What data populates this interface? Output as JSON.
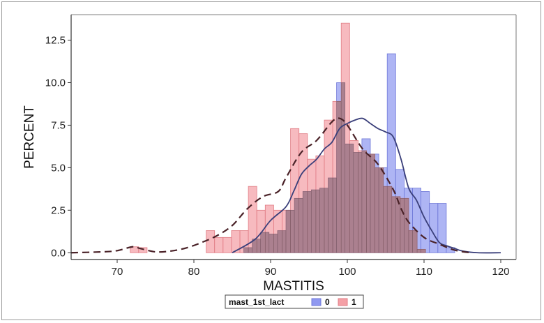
{
  "chart_data": {
    "type": "histogram",
    "xlabel": "MASTITIS",
    "ylabel": "PERCENT",
    "xlim": [
      64,
      122
    ],
    "ylim": [
      -0.4,
      14.0
    ],
    "x_ticks": [
      70,
      80,
      90,
      100,
      110,
      120
    ],
    "y_ticks": [
      0.0,
      2.5,
      5.0,
      7.5,
      10.0,
      12.5
    ],
    "x_tick_labels": [
      "70",
      "80",
      "90",
      "100",
      "110",
      "120"
    ],
    "y_tick_labels": [
      "0.0",
      "2.5",
      "5.0",
      "7.5",
      "10.0",
      "12.5"
    ],
    "bin_width": 1.1,
    "legend": {
      "title": "mast_1st_lact",
      "position": "bottom-center"
    },
    "colors": {
      "series_0": "#8f98f0",
      "series_1": "#f4a0a6",
      "overlap": "#9a7480",
      "curve_0": "#3a3f7a",
      "curve_1": "#4a2228"
    },
    "series": [
      {
        "name": "0",
        "bins": [
          {
            "x0": 86.5,
            "value": 0.3
          },
          {
            "x0": 87.6,
            "value": 0.8
          },
          {
            "x0": 88.7,
            "value": 1.2
          },
          {
            "x0": 89.8,
            "value": 1.1
          },
          {
            "x0": 90.9,
            "value": 1.3
          },
          {
            "x0": 92.0,
            "value": 2.5
          },
          {
            "x0": 93.1,
            "value": 3.2
          },
          {
            "x0": 94.2,
            "value": 3.6
          },
          {
            "x0": 95.3,
            "value": 3.7
          },
          {
            "x0": 96.4,
            "value": 3.8
          },
          {
            "x0": 97.5,
            "value": 4.4
          },
          {
            "x0": 98.6,
            "value": 10.0
          },
          {
            "x0": 99.7,
            "value": 6.4
          },
          {
            "x0": 100.8,
            "value": 5.9
          },
          {
            "x0": 101.9,
            "value": 6.7
          },
          {
            "x0": 103.0,
            "value": 5.8
          },
          {
            "x0": 104.1,
            "value": 5.0
          },
          {
            "x0": 105.2,
            "value": 11.7
          },
          {
            "x0": 106.3,
            "value": 4.9
          },
          {
            "x0": 107.4,
            "value": 3.8
          },
          {
            "x0": 108.5,
            "value": 3.8
          },
          {
            "x0": 109.6,
            "value": 3.6
          },
          {
            "x0": 110.7,
            "value": 2.9
          },
          {
            "x0": 111.8,
            "value": 2.9
          },
          {
            "x0": 112.9,
            "value": 0.3
          }
        ],
        "density": {
          "x": [
            85,
            88,
            90,
            92,
            93,
            94,
            95,
            96,
            97,
            98,
            99,
            100,
            101,
            102,
            103,
            104,
            105,
            106,
            107,
            108,
            109,
            110,
            111,
            112,
            113,
            114,
            115,
            117,
            120
          ],
          "y": [
            0.0,
            0.8,
            1.9,
            2.7,
            3.6,
            4.6,
            5.1,
            5.5,
            6.1,
            6.5,
            7.3,
            7.6,
            7.8,
            7.9,
            7.6,
            7.3,
            7.1,
            6.8,
            5.5,
            3.8,
            3.1,
            2.1,
            1.3,
            0.6,
            0.4,
            0.25,
            0.1,
            0.0,
            0.0
          ]
        }
      },
      {
        "name": "1",
        "bins": [
          {
            "x0": 71.7,
            "value": 0.35
          },
          {
            "x0": 72.8,
            "value": 0.3
          },
          {
            "x0": 81.6,
            "value": 1.3
          },
          {
            "x0": 82.7,
            "value": 0.9
          },
          {
            "x0": 83.8,
            "value": 0.9
          },
          {
            "x0": 84.9,
            "value": 1.3
          },
          {
            "x0": 86.0,
            "value": 1.3
          },
          {
            "x0": 87.1,
            "value": 3.9
          },
          {
            "x0": 88.2,
            "value": 2.5
          },
          {
            "x0": 89.3,
            "value": 2.8
          },
          {
            "x0": 90.4,
            "value": 2.5
          },
          {
            "x0": 91.5,
            "value": 2.5
          },
          {
            "x0": 92.6,
            "value": 7.3
          },
          {
            "x0": 93.7,
            "value": 7.0
          },
          {
            "x0": 94.8,
            "value": 5.5
          },
          {
            "x0": 95.9,
            "value": 5.7
          },
          {
            "x0": 97.0,
            "value": 7.8
          },
          {
            "x0": 98.1,
            "value": 8.9
          },
          {
            "x0": 99.2,
            "value": 13.5
          },
          {
            "x0": 100.3,
            "value": 6.6
          },
          {
            "x0": 101.4,
            "value": 6.0
          },
          {
            "x0": 102.5,
            "value": 5.8
          },
          {
            "x0": 103.6,
            "value": 5.0
          },
          {
            "x0": 104.7,
            "value": 3.9
          },
          {
            "x0": 105.8,
            "value": 3.3
          },
          {
            "x0": 106.9,
            "value": 3.2
          },
          {
            "x0": 108.0,
            "value": 1.3
          },
          {
            "x0": 109.1,
            "value": 0.2
          }
        ],
        "density": {
          "x": [
            64,
            68,
            70,
            72,
            73,
            75,
            77,
            79,
            81,
            83,
            85,
            87,
            89,
            91,
            92,
            94,
            96,
            98,
            99,
            100,
            102,
            104,
            106,
            107,
            108,
            110,
            112,
            114,
            116
          ],
          "y": [
            0.0,
            0.05,
            0.12,
            0.35,
            0.25,
            0.05,
            0.1,
            0.28,
            0.6,
            1.0,
            1.6,
            2.6,
            3.3,
            3.6,
            4.4,
            5.9,
            6.6,
            7.7,
            7.9,
            7.5,
            6.1,
            5.2,
            3.7,
            2.6,
            1.8,
            0.9,
            0.5,
            0.15,
            0.0
          ]
        }
      }
    ]
  }
}
